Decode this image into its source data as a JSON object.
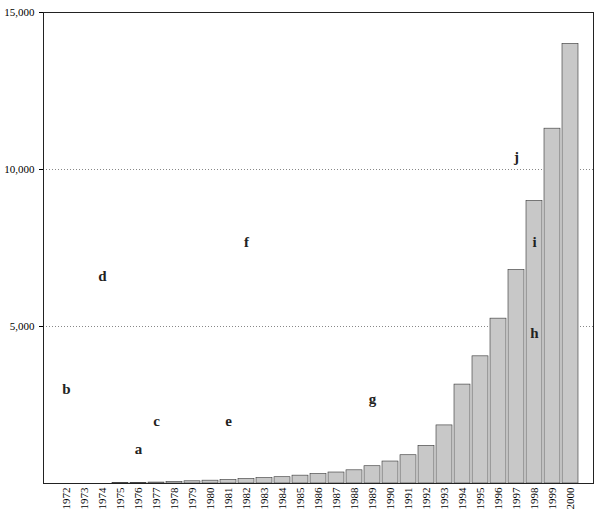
{
  "chart_data": {
    "type": "bar",
    "categories": [
      "1972",
      "1973",
      "1974",
      "1975",
      "1976",
      "1977",
      "1978",
      "1979",
      "1980",
      "1981",
      "1982",
      "1983",
      "1984",
      "1985",
      "1986",
      "1987",
      "1988",
      "1989",
      "1990",
      "1991",
      "1992",
      "1993",
      "1994",
      "1995",
      "1996",
      "1997",
      "1998",
      "1999",
      "2000"
    ],
    "values": [
      0,
      0,
      0,
      10,
      20,
      30,
      50,
      70,
      90,
      110,
      140,
      170,
      200,
      250,
      300,
      350,
      420,
      550,
      700,
      900,
      1200,
      1850,
      3150,
      4050,
      5250,
      6800,
      9000,
      11300,
      14000
    ],
    "color": "#c8c8c8",
    "ylim": [
      0,
      15000
    ],
    "yticks": [
      5000,
      10000,
      15000
    ],
    "grid": true,
    "annotations": [
      {
        "text": "a",
        "x": "1976",
        "y": 1100
      },
      {
        "text": "b",
        "x": "1972",
        "y": 3000
      },
      {
        "text": "c",
        "x": "1977",
        "y": 2000
      },
      {
        "text": "d",
        "x": "1974",
        "y": 6600
      },
      {
        "text": "e",
        "x": "1981",
        "y": 2000
      },
      {
        "text": "f",
        "x": "1982",
        "y": 7700
      },
      {
        "text": "g",
        "x": "1989",
        "y": 2700
      },
      {
        "text": "h",
        "x": "1998",
        "y": 4800
      },
      {
        "text": "i",
        "x": "1998",
        "y": 7700
      },
      {
        "text": "j",
        "x": "1997",
        "y": 10400
      }
    ]
  }
}
